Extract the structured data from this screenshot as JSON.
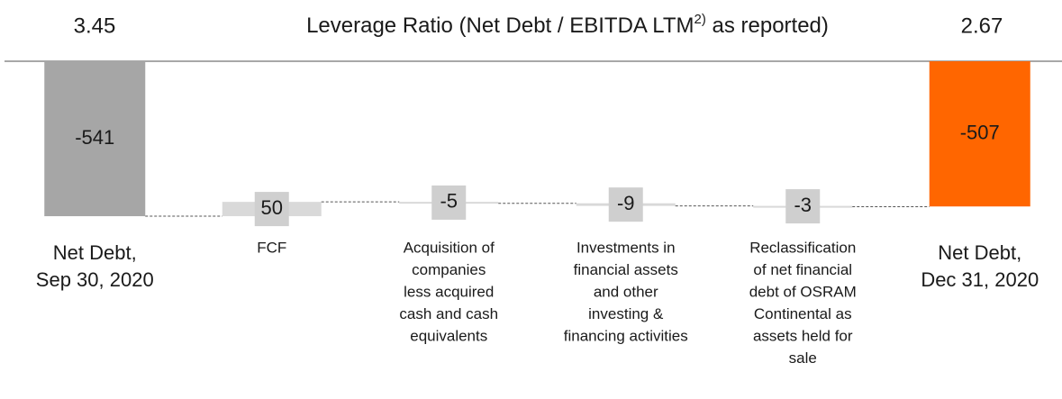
{
  "chart_data": {
    "type": "waterfall",
    "title": "Leverage Ratio (Net Debt / EBITDA LTM",
    "title_superscript": "2)",
    "title_suffix": " as reported)",
    "header_left": "3.45",
    "header_right": "2.67",
    "categories": [
      [
        "Net Debt,",
        "Sep 30, 2020"
      ],
      [
        "FCF"
      ],
      [
        "Acquisition of",
        "companies",
        "less acquired",
        "cash and cash",
        "equivalents"
      ],
      [
        "Investments in",
        "financial assets",
        "and other",
        "investing &",
        "financing activities"
      ],
      [
        "Reclassification",
        "of net financial",
        "debt of OSRAM",
        "Continental as",
        "assets held for",
        "sale"
      ],
      [
        "Net Debt,",
        "Dec 31, 2020"
      ]
    ],
    "values": [
      -541,
      50,
      -5,
      -9,
      -3,
      -507
    ],
    "colors": [
      "#a6a6a6",
      "#d9d9d9",
      "#d9d9d9",
      "#d9d9d9",
      "#d9d9d9",
      "#ff6600"
    ],
    "label_colors": [
      "#1a1a1a",
      "#1a1a1a",
      "#1a1a1a",
      "#1a1a1a",
      "#1a1a1a",
      "#ffffff"
    ],
    "ylim": [
      -620,
      0
    ]
  }
}
